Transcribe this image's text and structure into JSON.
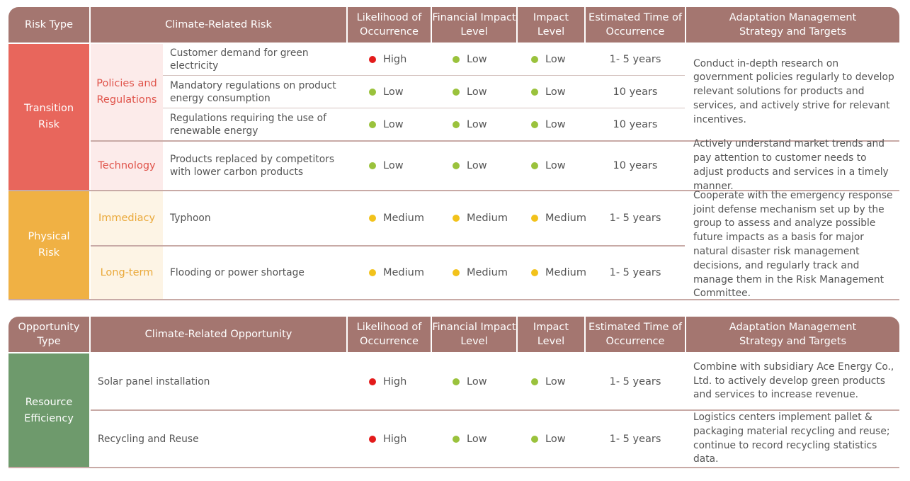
{
  "risk_table": {
    "headers": {
      "type": "Risk Type",
      "climate": "Climate-Related Risk",
      "likelihood": "Likelihood of Occurrence",
      "financial": "Financial Impact Level",
      "impact": "Impact Level",
      "time": "Estimated Time of Occurrence",
      "strategy": "Adaptation Management Strategy and Targets"
    },
    "categories": {
      "transition": "Transition Risk",
      "physical": "Physical Risk"
    },
    "subcategories": {
      "policies": "Policies and Regulations",
      "technology": "Technology",
      "immediacy": "Immediacy",
      "longterm": "Long-term"
    },
    "rows": [
      {
        "risk": "Customer demand for green electricity",
        "likelihood": "High",
        "financial": "Low",
        "impact": "Low",
        "time": "1- 5 years"
      },
      {
        "risk": "Mandatory regulations on product energy consumption",
        "likelihood": "Low",
        "financial": "Low",
        "impact": "Low",
        "time": "10 years"
      },
      {
        "risk": "Regulations requiring the use of renewable energy",
        "likelihood": "Low",
        "financial": "Low",
        "impact": "Low",
        "time": "10 years"
      },
      {
        "risk": "Products replaced by competitors with lower carbon products",
        "likelihood": "Low",
        "financial": "Low",
        "impact": "Low",
        "time": "10 years"
      },
      {
        "risk": "Typhoon",
        "likelihood": "Medium",
        "financial": "Medium",
        "impact": "Medium",
        "time": "1- 5 years"
      },
      {
        "risk": "Flooding or power shortage",
        "likelihood": "Medium",
        "financial": "Medium",
        "impact": "Medium",
        "time": "1- 5 years"
      }
    ],
    "strategies": {
      "policies": "Conduct in-depth research on government policies regularly to develop relevant solutions for products and services, and actively strive for relevant incentives.",
      "technology": "Actively understand market trends and pay attention to customer needs to adjust products and services in a timely manner.",
      "physical": "Cooperate with the emergency response joint defense mechanism set up by the group to assess and analyze possible future impacts as a basis for major natural disaster risk management decisions, and regularly track and manage them in the Risk Management Committee."
    }
  },
  "opportunity_table": {
    "headers": {
      "type": "Opportunity Type",
      "climate": "Climate-Related Opportunity",
      "likelihood": "Likelihood of Occurrence",
      "financial": "Financial Impact Level",
      "impact": "Impact Level",
      "time": "Estimated Time of Occurrence",
      "strategy": "Adaptation Management Strategy and Targets"
    },
    "category": "Resource Efficiency",
    "rows": [
      {
        "opportunity": "Solar panel installation",
        "likelihood": "High",
        "financial": "Low",
        "impact": "Low",
        "time": "1- 5 years",
        "strategy": "Combine with subsidiary Ace Energy Co., Ltd. to actively develop green products and services to increase revenue."
      },
      {
        "opportunity": "Recycling and Reuse",
        "likelihood": "High",
        "financial": "Low",
        "impact": "Low",
        "time": "1- 5 years",
        "strategy": "Logistics centers implement pallet & packaging material recycling and reuse; continue to record recycling statistics data."
      }
    ]
  },
  "colors": {
    "header": "#a47670",
    "transition": "#e8665c",
    "physical": "#f0b144",
    "resource": "#6e9a6c",
    "high": "#e31b1b",
    "medium": "#f2c21b",
    "low": "#9ac23c"
  }
}
